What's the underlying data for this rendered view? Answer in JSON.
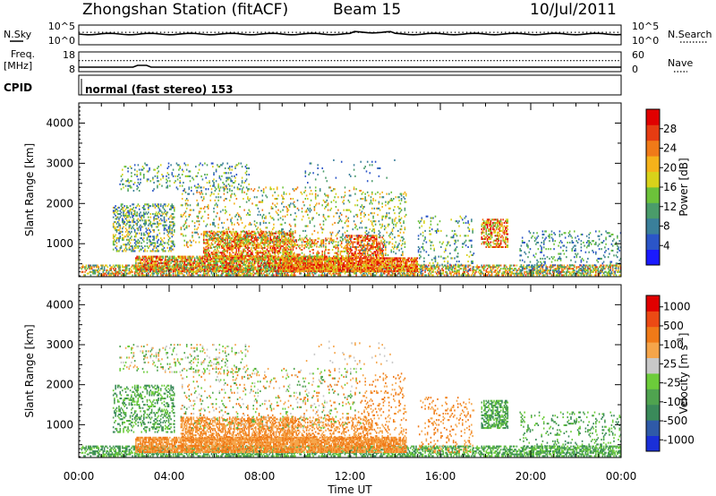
{
  "header": {
    "station": "Zhongshan Station (fitACF)",
    "beam": "Beam 15",
    "date": "10/Jul/2011"
  },
  "strip": {
    "nsky_label": "N.Sky",
    "nsky_ticks": [
      "10^5",
      "10^0"
    ],
    "nsearch_label": "N.Search",
    "nsearch_ticks": [
      "10^5",
      "10^0"
    ],
    "freq_label": "Freq.",
    "freq_unit": "[MHz]",
    "freq_ticks": [
      "18",
      "8"
    ],
    "nave_label": "Nave",
    "nave_ticks": [
      "60",
      "0"
    ],
    "cpid_label": "CPID",
    "cpid_text": "normal (fast stereo) 153"
  },
  "chart_data": [
    {
      "type": "heatmap",
      "name": "power",
      "ylabel": "Slant Range [km]",
      "xlabel": "Time UT",
      "xlim": [
        0,
        24
      ],
      "ylim": [
        180,
        4500
      ],
      "x_ticks": [
        "00:00",
        "04:00",
        "08:00",
        "12:00",
        "16:00",
        "20:00",
        "00:00"
      ],
      "y_ticks": [
        1000,
        2000,
        3000,
        4000
      ],
      "colorbar": {
        "label": "Power [dB]",
        "ticks": [
          "4",
          "8",
          "12",
          "16",
          "20",
          "24",
          "28"
        ],
        "colors": [
          "#1a1aff",
          "#2b55c8",
          "#3a7f9a",
          "#4a9c6a",
          "#6cc23a",
          "#d8d21a",
          "#f5b21a",
          "#f07a18",
          "#e63c12",
          "#e00000"
        ]
      },
      "regions": [
        {
          "t0": 0.1,
          "t1": 24.0,
          "r0": 200,
          "r1": 450,
          "d": 0.55,
          "c": [
            2,
            8
          ]
        },
        {
          "t0": 2.5,
          "t1": 11.5,
          "r0": 300,
          "r1": 700,
          "d": 0.75,
          "c": [
            3,
            9
          ]
        },
        {
          "t0": 9.0,
          "t1": 15.0,
          "r0": 300,
          "r1": 650,
          "d": 0.8,
          "c": [
            5,
            9
          ]
        },
        {
          "t0": 5.5,
          "t1": 9.5,
          "r0": 600,
          "r1": 1300,
          "d": 0.6,
          "c": [
            4,
            9
          ]
        },
        {
          "t0": 11.8,
          "t1": 13.5,
          "r0": 500,
          "r1": 1200,
          "d": 0.55,
          "c": [
            6,
            9
          ]
        },
        {
          "t0": 9.0,
          "t1": 12.0,
          "r0": 550,
          "r1": 1150,
          "d": 0.3,
          "c": [
            4,
            8
          ]
        },
        {
          "t0": 1.5,
          "t1": 4.2,
          "r0": 800,
          "r1": 2000,
          "d": 0.35,
          "c": [
            1,
            6
          ]
        },
        {
          "t0": 4.5,
          "t1": 12.5,
          "r0": 900,
          "r1": 2400,
          "d": 0.12,
          "c": [
            2,
            7
          ]
        },
        {
          "t0": 12.5,
          "t1": 14.5,
          "r0": 700,
          "r1": 2300,
          "d": 0.15,
          "c": [
            2,
            6
          ]
        },
        {
          "t0": 1.8,
          "t1": 7.5,
          "r0": 2300,
          "r1": 3000,
          "d": 0.14,
          "c": [
            1,
            5
          ]
        },
        {
          "t0": 17.8,
          "t1": 19.0,
          "r0": 900,
          "r1": 1600,
          "d": 0.55,
          "c": [
            4,
            9
          ]
        },
        {
          "t0": 15.0,
          "t1": 17.5,
          "r0": 300,
          "r1": 1700,
          "d": 0.12,
          "c": [
            1,
            5
          ]
        },
        {
          "t0": 19.5,
          "t1": 24.0,
          "r0": 250,
          "r1": 1300,
          "d": 0.14,
          "c": [
            1,
            4
          ]
        },
        {
          "t0": 10.0,
          "t1": 14.0,
          "r0": 2500,
          "r1": 3100,
          "d": 0.03,
          "c": [
            1,
            3
          ]
        }
      ]
    },
    {
      "type": "heatmap",
      "name": "velocity",
      "ylabel": "Slant Range [km]",
      "xlabel": "Time UT",
      "xlim": [
        0,
        24
      ],
      "ylim": [
        180,
        4500
      ],
      "x_ticks": [
        "00:00",
        "04:00",
        "08:00",
        "12:00",
        "16:00",
        "20:00",
        "00:00"
      ],
      "y_ticks": [
        1000,
        2000,
        3000,
        4000
      ],
      "colorbar": {
        "label": "Velocity [m s^-1]",
        "ticks": [
          "1000",
          "500",
          "100",
          "25",
          "-25",
          "-100",
          "-500",
          "-1000"
        ],
        "colors": [
          "#1a2fd8",
          "#2f5aa8",
          "#3a8a5a",
          "#4fa34f",
          "#6ccc3a",
          "#c8c8c8",
          "#f5a54a",
          "#f07a18",
          "#ec4a14",
          "#e00000"
        ]
      },
      "regions": [
        {
          "t0": 0.1,
          "t1": 24.0,
          "r0": 200,
          "r1": 450,
          "d": 0.55,
          "c": [
            2,
            4
          ]
        },
        {
          "t0": 2.5,
          "t1": 14.5,
          "r0": 300,
          "r1": 700,
          "d": 0.8,
          "c": [
            6,
            7
          ]
        },
        {
          "t0": 4.5,
          "t1": 9.5,
          "r0": 600,
          "r1": 1200,
          "d": 0.55,
          "c": [
            6,
            7
          ]
        },
        {
          "t0": 9.0,
          "t1": 13.0,
          "r0": 600,
          "r1": 1200,
          "d": 0.3,
          "c": [
            6,
            7
          ]
        },
        {
          "t0": 1.5,
          "t1": 4.2,
          "r0": 800,
          "r1": 2000,
          "d": 0.3,
          "c": [
            2,
            4
          ]
        },
        {
          "t0": 4.5,
          "t1": 12.5,
          "r0": 900,
          "r1": 2400,
          "d": 0.1,
          "c": [
            3,
            7
          ]
        },
        {
          "t0": 12.5,
          "t1": 14.5,
          "r0": 700,
          "r1": 2300,
          "d": 0.13,
          "c": [
            6,
            7
          ]
        },
        {
          "t0": 1.8,
          "t1": 7.5,
          "r0": 2300,
          "r1": 3000,
          "d": 0.12,
          "c": [
            3,
            6
          ]
        },
        {
          "t0": 17.8,
          "t1": 19.0,
          "r0": 900,
          "r1": 1600,
          "d": 0.55,
          "c": [
            2,
            4
          ]
        },
        {
          "t0": 15.0,
          "t1": 17.5,
          "r0": 300,
          "r1": 1700,
          "d": 0.12,
          "c": [
            6,
            7
          ]
        },
        {
          "t0": 19.5,
          "t1": 24.0,
          "r0": 250,
          "r1": 1300,
          "d": 0.13,
          "c": [
            2,
            4
          ]
        },
        {
          "t0": 10.0,
          "t1": 14.0,
          "r0": 2500,
          "r1": 3100,
          "d": 0.03,
          "c": [
            5,
            6
          ]
        }
      ]
    }
  ]
}
